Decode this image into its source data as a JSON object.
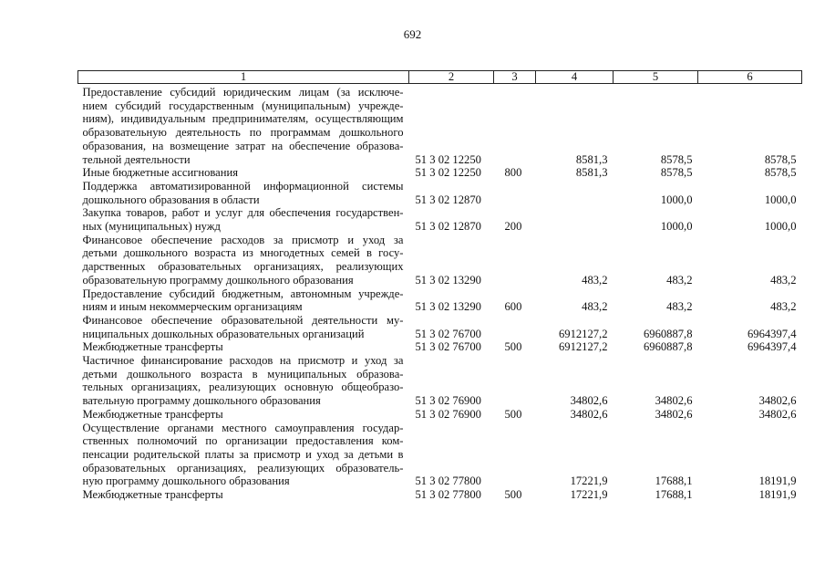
{
  "page_number": "692",
  "table": {
    "headers": [
      "1",
      "2",
      "3",
      "4",
      "5",
      "6"
    ],
    "rows": [
      {
        "lines": [
          "Предоставление субсидий юридическим лицам (за исключе-",
          "нием субсидий государственным (муниципальным) учрежде-",
          "ниям), индивидуальным предпринимателям, осуществляющим",
          "образовательную деятельность по программам дошкольного",
          "образования, на возмещение затрат на обеспечение образова-",
          "тельной деятельности"
        ],
        "code": "51 3 02 12250",
        "type": "",
        "v4": "8581,3",
        "v5": "8578,5",
        "v6": "8578,5"
      },
      {
        "lines": [
          "Иные бюджетные ассигнования"
        ],
        "code": "51 3 02 12250",
        "type": "800",
        "v4": "8581,3",
        "v5": "8578,5",
        "v6": "8578,5"
      },
      {
        "lines": [
          "Поддержка автоматизированной информационной системы",
          "дошкольного образования в области"
        ],
        "code": "51 3 02 12870",
        "type": "",
        "v4": "",
        "v5": "1000,0",
        "v6": "1000,0"
      },
      {
        "lines": [
          "Закупка товаров, работ и услуг для обеспечения государствен-",
          "ных (муниципальных) нужд"
        ],
        "code": "51 3 02 12870",
        "type": "200",
        "v4": "",
        "v5": "1000,0",
        "v6": "1000,0"
      },
      {
        "lines": [
          "Финансовое обеспечение расходов за присмотр и уход за",
          "детьми дошкольного возраста из многодетных семей в госу-",
          "дарственных образовательных организациях, реализующих",
          "образовательную программу дошкольного образования"
        ],
        "code": "51 3 02 13290",
        "type": "",
        "v4": "483,2",
        "v5": "483,2",
        "v6": "483,2"
      },
      {
        "lines": [
          "Предоставление субсидий бюджетным, автономным учрежде-",
          "ниям и иным некоммерческим организациям"
        ],
        "code": "51 3 02 13290",
        "type": "600",
        "v4": "483,2",
        "v5": "483,2",
        "v6": "483,2"
      },
      {
        "lines": [
          "Финансовое обеспечение образовательной деятельности му-",
          "ниципальных дошкольных образовательных организаций"
        ],
        "code": "51 3 02 76700",
        "type": "",
        "v4": "6912127,2",
        "v5": "6960887,8",
        "v6": "6964397,4"
      },
      {
        "lines": [
          "Межбюджетные трансферты"
        ],
        "code": "51 3 02 76700",
        "type": "500",
        "v4": "6912127,2",
        "v5": "6960887,8",
        "v6": "6964397,4"
      },
      {
        "lines": [
          "Частичное финансирование расходов на присмотр и уход за",
          "детьми дошкольного возраста в муниципальных образова-",
          "тельных организациях, реализующих основную общеобразо-",
          "вательную программу дошкольного образования"
        ],
        "code": "51 3 02 76900",
        "type": "",
        "v4": "34802,6",
        "v5": "34802,6",
        "v6": "34802,6"
      },
      {
        "lines": [
          "Межбюджетные трансферты"
        ],
        "code": "51 3 02 76900",
        "type": "500",
        "v4": "34802,6",
        "v5": "34802,6",
        "v6": "34802,6"
      },
      {
        "lines": [
          "Осуществление органами местного самоуправления государ-",
          "ственных полномочий по организации предоставления ком-",
          "пенсации родительской платы за присмотр и уход за детьми в",
          "образовательных организациях, реализующих образователь-",
          "ную программу дошкольного образования"
        ],
        "code": "51 3 02 77800",
        "type": "",
        "v4": "17221,9",
        "v5": "17688,1",
        "v6": "18191,9"
      },
      {
        "lines": [
          "Межбюджетные трансферты"
        ],
        "code": "51 3 02 77800",
        "type": "500",
        "v4": "17221,9",
        "v5": "17688,1",
        "v6": "18191,9"
      }
    ]
  }
}
